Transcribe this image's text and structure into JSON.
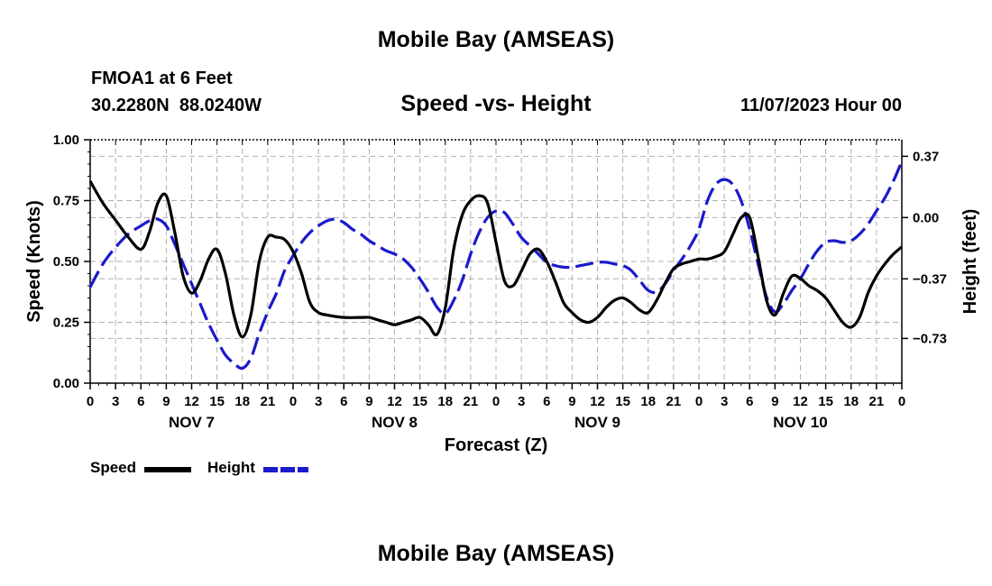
{
  "page": {
    "title": "Mobile Bay (AMSEAS)",
    "station_line": "FMOA1 at 6 Feet",
    "coords_line": "30.2280N  88.0240W",
    "datetime": "11/07/2023 Hour 00",
    "footer_title": "Mobile Bay (AMSEAS)"
  },
  "chart_data": {
    "type": "line",
    "title": "Speed -vs- Height",
    "xlabel": "Forecast (Z)",
    "ylabel": "Speed (Knots)",
    "ylabel_right": "Height (feet)",
    "x_range": [
      0,
      96
    ],
    "ylim": [
      0,
      1.0
    ],
    "ylim_right": [
      -1.0,
      0.47
    ],
    "grid": true,
    "legend": "bottom-left",
    "x_tick_hours": [
      0,
      3,
      6,
      9,
      12,
      15,
      18,
      21,
      24,
      27,
      30,
      33,
      36,
      39,
      42,
      45,
      48,
      51,
      54,
      57,
      60,
      63,
      66,
      69,
      72,
      75,
      78,
      81,
      84,
      87,
      90,
      93,
      96
    ],
    "x_tick_labels": [
      "0",
      "3",
      "6",
      "9",
      "12",
      "15",
      "18",
      "21",
      "0",
      "3",
      "6",
      "9",
      "12",
      "15",
      "18",
      "21",
      "0",
      "3",
      "6",
      "9",
      "12",
      "15",
      "18",
      "21",
      "0",
      "3",
      "6",
      "9",
      "12",
      "15",
      "18",
      "21",
      "0"
    ],
    "day_labels": [
      {
        "label": "NOV 7",
        "hour": 12
      },
      {
        "label": "NOV 8",
        "hour": 36
      },
      {
        "label": "NOV 9",
        "hour": 60
      },
      {
        "label": "NOV 10",
        "hour": 84
      }
    ],
    "y_ticks": [
      0,
      0.25,
      0.5,
      0.75,
      1.0
    ],
    "y_tick_labels": [
      "0.00",
      "0.25",
      "0.50",
      "0.75",
      "1.00"
    ],
    "y_right_ticks": [
      -0.73,
      -0.37,
      0.0,
      0.37
    ],
    "y_right_tick_labels": [
      "−0.73",
      "−0.37",
      "0.00",
      "0.37"
    ],
    "series": [
      {
        "name": "Speed",
        "axis": "left",
        "color": "#000000",
        "dash": "solid",
        "points": [
          [
            0,
            0.83
          ],
          [
            1.5,
            0.74
          ],
          [
            3,
            0.67
          ],
          [
            4.5,
            0.6
          ],
          [
            6,
            0.55
          ],
          [
            7,
            0.62
          ],
          [
            8,
            0.74
          ],
          [
            9,
            0.77
          ],
          [
            10,
            0.62
          ],
          [
            11,
            0.44
          ],
          [
            12,
            0.37
          ],
          [
            13,
            0.42
          ],
          [
            14,
            0.51
          ],
          [
            15,
            0.55
          ],
          [
            16,
            0.45
          ],
          [
            17,
            0.28
          ],
          [
            18,
            0.19
          ],
          [
            19,
            0.28
          ],
          [
            20,
            0.5
          ],
          [
            21,
            0.6
          ],
          [
            22,
            0.6
          ],
          [
            23,
            0.59
          ],
          [
            24,
            0.54
          ],
          [
            25,
            0.45
          ],
          [
            26,
            0.33
          ],
          [
            27,
            0.29
          ],
          [
            28,
            0.28
          ],
          [
            30,
            0.27
          ],
          [
            32,
            0.27
          ],
          [
            33,
            0.27
          ],
          [
            34,
            0.26
          ],
          [
            35,
            0.25
          ],
          [
            36,
            0.24
          ],
          [
            37,
            0.25
          ],
          [
            38,
            0.26
          ],
          [
            39,
            0.27
          ],
          [
            40,
            0.24
          ],
          [
            41,
            0.2
          ],
          [
            42,
            0.31
          ],
          [
            43,
            0.55
          ],
          [
            44,
            0.69
          ],
          [
            45,
            0.75
          ],
          [
            46,
            0.77
          ],
          [
            47,
            0.74
          ],
          [
            48,
            0.58
          ],
          [
            49,
            0.42
          ],
          [
            50,
            0.4
          ],
          [
            51,
            0.46
          ],
          [
            52,
            0.53
          ],
          [
            53,
            0.55
          ],
          [
            54,
            0.5
          ],
          [
            55,
            0.42
          ],
          [
            56,
            0.33
          ],
          [
            57,
            0.29
          ],
          [
            58,
            0.26
          ],
          [
            59,
            0.25
          ],
          [
            60,
            0.27
          ],
          [
            61,
            0.31
          ],
          [
            62,
            0.34
          ],
          [
            63,
            0.35
          ],
          [
            64,
            0.33
          ],
          [
            65,
            0.3
          ],
          [
            66,
            0.29
          ],
          [
            67,
            0.34
          ],
          [
            68,
            0.41
          ],
          [
            69,
            0.47
          ],
          [
            70,
            0.49
          ],
          [
            71,
            0.5
          ],
          [
            72,
            0.51
          ],
          [
            73,
            0.51
          ],
          [
            74,
            0.52
          ],
          [
            75,
            0.54
          ],
          [
            76,
            0.61
          ],
          [
            77,
            0.68
          ],
          [
            78,
            0.68
          ],
          [
            79,
            0.52
          ],
          [
            80,
            0.34
          ],
          [
            81,
            0.28
          ],
          [
            82,
            0.37
          ],
          [
            83,
            0.44
          ],
          [
            84,
            0.43
          ],
          [
            85,
            0.4
          ],
          [
            86,
            0.38
          ],
          [
            87,
            0.35
          ],
          [
            88,
            0.3
          ],
          [
            89,
            0.25
          ],
          [
            90,
            0.23
          ],
          [
            91,
            0.27
          ],
          [
            92,
            0.37
          ],
          [
            93,
            0.44
          ],
          [
            94,
            0.49
          ],
          [
            95,
            0.53
          ],
          [
            96,
            0.56
          ]
        ]
      },
      {
        "name": "Height",
        "axis": "right",
        "color": "#1a1acc",
        "dash": "dashed",
        "points": [
          [
            0,
            -0.42
          ],
          [
            1.5,
            -0.28
          ],
          [
            3,
            -0.18
          ],
          [
            4.5,
            -0.1
          ],
          [
            6,
            -0.05
          ],
          [
            7,
            -0.02
          ],
          [
            8,
            -0.01
          ],
          [
            9,
            -0.05
          ],
          [
            10,
            -0.16
          ],
          [
            11,
            -0.28
          ],
          [
            12,
            -0.4
          ],
          [
            13,
            -0.52
          ],
          [
            14,
            -0.64
          ],
          [
            15,
            -0.74
          ],
          [
            16,
            -0.83
          ],
          [
            17,
            -0.88
          ],
          [
            18,
            -0.91
          ],
          [
            19,
            -0.85
          ],
          [
            20,
            -0.7
          ],
          [
            21,
            -0.57
          ],
          [
            22,
            -0.46
          ],
          [
            23,
            -0.32
          ],
          [
            24,
            -0.23
          ],
          [
            25,
            -0.15
          ],
          [
            26,
            -0.09
          ],
          [
            27,
            -0.05
          ],
          [
            28,
            -0.02
          ],
          [
            29,
            -0.01
          ],
          [
            30,
            -0.03
          ],
          [
            31,
            -0.07
          ],
          [
            32,
            -0.1
          ],
          [
            33,
            -0.14
          ],
          [
            34,
            -0.17
          ],
          [
            35,
            -0.2
          ],
          [
            36,
            -0.22
          ],
          [
            37,
            -0.25
          ],
          [
            38,
            -0.3
          ],
          [
            39,
            -0.37
          ],
          [
            40,
            -0.45
          ],
          [
            41,
            -0.54
          ],
          [
            42,
            -0.58
          ],
          [
            43,
            -0.5
          ],
          [
            44,
            -0.38
          ],
          [
            45,
            -0.22
          ],
          [
            46,
            -0.09
          ],
          [
            47,
            0.0
          ],
          [
            48,
            0.04
          ],
          [
            49,
            0.03
          ],
          [
            50,
            -0.04
          ],
          [
            51,
            -0.12
          ],
          [
            52,
            -0.17
          ],
          [
            53,
            -0.22
          ],
          [
            54,
            -0.27
          ],
          [
            55,
            -0.29
          ],
          [
            56,
            -0.3
          ],
          [
            57,
            -0.3
          ],
          [
            58,
            -0.29
          ],
          [
            59,
            -0.28
          ],
          [
            60,
            -0.27
          ],
          [
            61,
            -0.27
          ],
          [
            62,
            -0.28
          ],
          [
            63,
            -0.29
          ],
          [
            64,
            -0.32
          ],
          [
            65,
            -0.38
          ],
          [
            66,
            -0.44
          ],
          [
            67,
            -0.45
          ],
          [
            68,
            -0.4
          ],
          [
            69,
            -0.32
          ],
          [
            70,
            -0.25
          ],
          [
            71,
            -0.17
          ],
          [
            72,
            -0.07
          ],
          [
            73,
            0.1
          ],
          [
            74,
            0.2
          ],
          [
            75,
            0.23
          ],
          [
            76,
            0.2
          ],
          [
            77,
            0.1
          ],
          [
            78,
            -0.07
          ],
          [
            79,
            -0.28
          ],
          [
            80,
            -0.48
          ],
          [
            81,
            -0.57
          ],
          [
            82,
            -0.52
          ],
          [
            83,
            -0.44
          ],
          [
            84,
            -0.37
          ],
          [
            85,
            -0.28
          ],
          [
            86,
            -0.2
          ],
          [
            87,
            -0.15
          ],
          [
            88,
            -0.14
          ],
          [
            89,
            -0.15
          ],
          [
            90,
            -0.14
          ],
          [
            91,
            -0.1
          ],
          [
            92,
            -0.04
          ],
          [
            93,
            0.04
          ],
          [
            94,
            0.12
          ],
          [
            95,
            0.22
          ],
          [
            96,
            0.34
          ]
        ]
      }
    ]
  }
}
